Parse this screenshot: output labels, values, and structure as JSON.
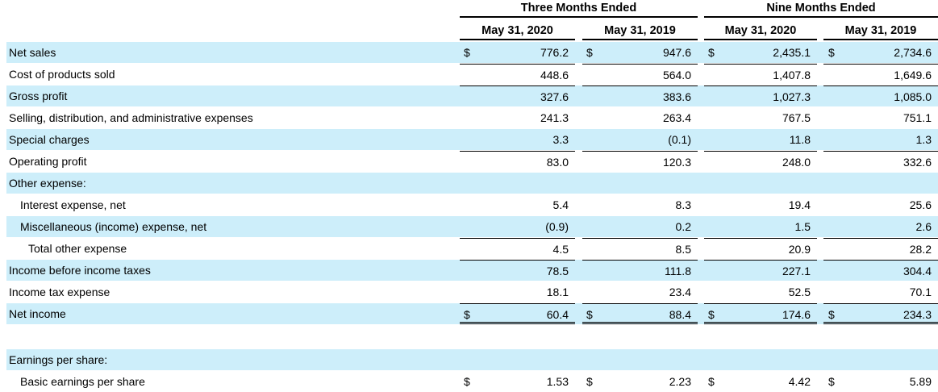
{
  "header": {
    "three_months": "Three Months Ended",
    "nine_months": "Nine Months Ended",
    "col1": "May 31, 2020",
    "col2": "May 31, 2019",
    "col3": "May 31, 2020",
    "col4": "May 31, 2019"
  },
  "rows": [
    {
      "label": "Net sales",
      "d": "$",
      "v": [
        "776.2",
        "947.6",
        "2,435.1",
        "2,734.6"
      ]
    },
    {
      "label": "Cost of products sold",
      "d": "",
      "v": [
        "448.6",
        "564.0",
        "1,407.8",
        "1,649.6"
      ]
    },
    {
      "label": "Gross profit",
      "d": "",
      "v": [
        "327.6",
        "383.6",
        "1,027.3",
        "1,085.0"
      ]
    },
    {
      "label": "Selling, distribution, and administrative expenses",
      "d": "",
      "v": [
        "241.3",
        "263.4",
        "767.5",
        "751.1"
      ]
    },
    {
      "label": "Special charges",
      "d": "",
      "v": [
        "3.3",
        "(0.1)",
        "11.8",
        "1.3"
      ]
    },
    {
      "label": "Operating profit",
      "d": "",
      "v": [
        "83.0",
        "120.3",
        "248.0",
        "332.6"
      ]
    },
    {
      "label": "Other expense:",
      "d": "",
      "v": [
        "",
        "",
        "",
        ""
      ]
    },
    {
      "label": "Interest expense, net",
      "d": "",
      "v": [
        "5.4",
        "8.3",
        "19.4",
        "25.6"
      ]
    },
    {
      "label": "Miscellaneous (income) expense, net",
      "d": "",
      "v": [
        "(0.9)",
        "0.2",
        "1.5",
        "2.6"
      ]
    },
    {
      "label": "Total other expense",
      "d": "",
      "v": [
        "4.5",
        "8.5",
        "20.9",
        "28.2"
      ]
    },
    {
      "label": "Income before income taxes",
      "d": "",
      "v": [
        "78.5",
        "111.8",
        "227.1",
        "304.4"
      ]
    },
    {
      "label": "Income tax expense",
      "d": "",
      "v": [
        "18.1",
        "23.4",
        "52.5",
        "70.1"
      ]
    },
    {
      "label": "Net income",
      "d": "$",
      "v": [
        "60.4",
        "88.4",
        "174.6",
        "234.3"
      ]
    },
    {
      "label": "Earnings per share:",
      "d": "",
      "v": [
        "",
        "",
        "",
        ""
      ]
    },
    {
      "label": "Basic earnings per share",
      "d": "$",
      "v": [
        "1.53",
        "2.23",
        "4.42",
        "5.89"
      ]
    }
  ],
  "colors": {
    "shade": "#cdeefa"
  }
}
